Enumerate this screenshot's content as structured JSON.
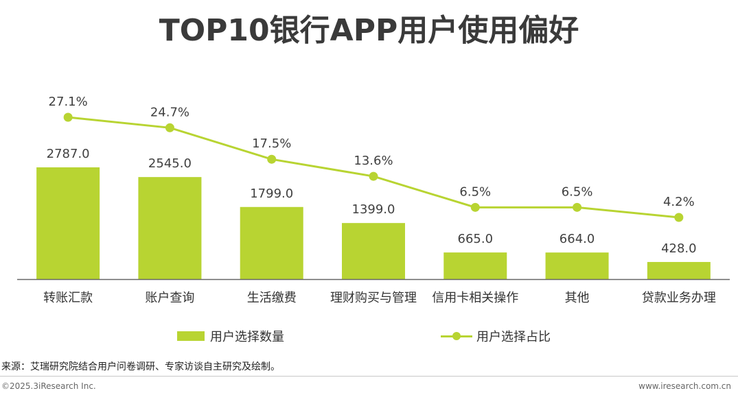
{
  "title": "TOP10银行APP用户使用偏好",
  "chart_data": {
    "type": "bar",
    "categories": [
      "转账汇款",
      "账户查询",
      "生活缴费",
      "理财购买与管理",
      "信用卡相关操作",
      "其他",
      "贷款业务办理"
    ],
    "series": [
      {
        "name": "用户选择数量",
        "type": "bar",
        "values": [
          2787.0,
          2545.0,
          1799.0,
          1399.0,
          665.0,
          664.0,
          428.0
        ],
        "labels": [
          "2787.0",
          "2545.0",
          "1799.0",
          "1399.0",
          "665.0",
          "664.0",
          "428.0"
        ]
      },
      {
        "name": "用户选择占比",
        "type": "line",
        "values": [
          27.1,
          24.7,
          17.5,
          13.6,
          6.5,
          6.5,
          4.2
        ],
        "labels": [
          "27.1%",
          "24.7%",
          "17.5%",
          "13.6%",
          "6.5%",
          "6.5%",
          "4.2%"
        ]
      }
    ],
    "color": "#b8d432",
    "legend": "bottom"
  },
  "source": "来源：艾瑞研究院结合用户问卷调研、专家访谈自主研究及绘制。",
  "footer": {
    "copyright": "©2025.3iResearch Inc.",
    "website": "www.iresearch.com.cn"
  }
}
